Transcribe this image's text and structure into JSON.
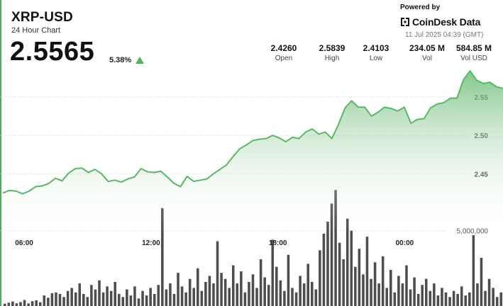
{
  "header": {
    "symbol": "XRP-USD",
    "subtitle": "24 Hour Chart",
    "price": "2.5565",
    "change": "5.38%",
    "powered_by": "Powered by",
    "brand": "CoinDesk Data",
    "timestamp": "11 Jul 2025 04:39 (GMT)"
  },
  "stats": [
    {
      "value": "2.4260",
      "label": "Open"
    },
    {
      "value": "2.5839",
      "label": "High"
    },
    {
      "value": "2.4103",
      "label": "Low"
    },
    {
      "value": "234.05 M",
      "label": "Vol"
    },
    {
      "value": "584.85 M",
      "label": "Vol USD"
    }
  ],
  "colors": {
    "line": "#5ab768",
    "fill_top": "#6dbd78",
    "fill_bottom": "#ffffff",
    "bars": "#4d4d4d",
    "grid": "#cfcfcf",
    "up": "#4fb35f",
    "rule": "#4cae5c"
  },
  "chart_data": {
    "type": "line",
    "price_axis": {
      "ticks": [
        2.45,
        2.5,
        2.55
      ],
      "tick_labels": [
        "2.45",
        "2.50",
        "2.55"
      ],
      "ylim": [
        2.395,
        2.607
      ]
    },
    "volume_axis": {
      "ticks": [
        5000000
      ],
      "tick_labels": [
        "5,000,000"
      ],
      "ylim": [
        0,
        8700000
      ]
    },
    "time_ticks": [
      {
        "label": "06:00",
        "hour": 6
      },
      {
        "label": "12:00",
        "hour": 12
      },
      {
        "label": "18:00",
        "hour": 18
      },
      {
        "label": "00:00",
        "hour": 24
      }
    ],
    "x_range_hours": [
      4.99,
      28.65
    ],
    "price": [
      2.425,
      2.4283,
      2.4275,
      2.424,
      2.4275,
      2.4333,
      2.4342,
      2.4375,
      2.4442,
      2.4408,
      2.4508,
      2.4567,
      2.4575,
      2.4517,
      2.4558,
      2.45,
      2.44,
      2.4417,
      2.4392,
      2.4433,
      2.4458,
      2.4567,
      2.4525,
      2.4517,
      2.4533,
      2.4458,
      2.4375,
      2.4333,
      2.4467,
      2.44,
      2.4417,
      2.4433,
      2.45,
      2.4558,
      2.4617,
      2.4725,
      2.4825,
      2.4875,
      2.4933,
      2.495,
      2.4958,
      2.5,
      2.4967,
      2.4917,
      2.4975,
      2.4958,
      2.5042,
      2.5083,
      2.5017,
      2.5042,
      2.4958,
      2.5142,
      2.5358,
      2.545,
      2.5367,
      2.5367,
      2.525,
      2.53,
      2.5367,
      2.535,
      2.5317,
      2.5367,
      2.5158,
      2.5208,
      2.5217,
      2.5358,
      2.5408,
      2.5425,
      2.5483,
      2.5483,
      2.5725,
      2.5839,
      2.5717,
      2.5675,
      2.5692,
      2.5633,
      2.5611
    ],
    "volume": [
      150000,
      220000,
      300000,
      180000,
      260000,
      400000,
      170000,
      320000,
      380000,
      250000,
      700000,
      550000,
      850000,
      900000,
      800000,
      600000,
      1000000,
      1200000,
      900000,
      1500000,
      800000,
      600000,
      1400000,
      1100000,
      1700000,
      900000,
      1300000,
      1000000,
      1600000,
      800000,
      600000,
      1100000,
      700000,
      1300000,
      500000,
      1000000,
      700000,
      1200000,
      800000,
      1400000,
      6500000,
      1100000,
      1500000,
      800000,
      2200000,
      1300000,
      900000,
      1800000,
      1200000,
      2500000,
      1000000,
      1600000,
      2000000,
      1500000,
      4300000,
      2200000,
      1800000,
      1200000,
      2700000,
      1500000,
      2300000,
      900000,
      1600000,
      2100000,
      1200000,
      3100000,
      1900000,
      1400000,
      4400000,
      2600000,
      1700000,
      1000000,
      3400000,
      1200000,
      900000,
      2000000,
      1500000,
      2800000,
      1600000,
      1100000,
      3700000,
      4800000,
      5600000,
      6800000,
      7700000,
      4200000,
      3100000,
      5800000,
      5000000,
      2600000,
      3800000,
      2100000,
      4600000,
      1800000,
      2900000,
      1500000,
      3300000,
      1200000,
      2400000,
      900000,
      2000000,
      1500000,
      2700000,
      1100000,
      1900000,
      800000,
      1400000,
      1800000,
      1000000,
      1500000,
      700000,
      1200000,
      900000,
      600000,
      1000000,
      800000,
      1300000,
      700000,
      900000,
      4700000,
      1500000,
      3200000,
      1000000,
      1800000,
      1200000,
      600000,
      900000
    ]
  }
}
